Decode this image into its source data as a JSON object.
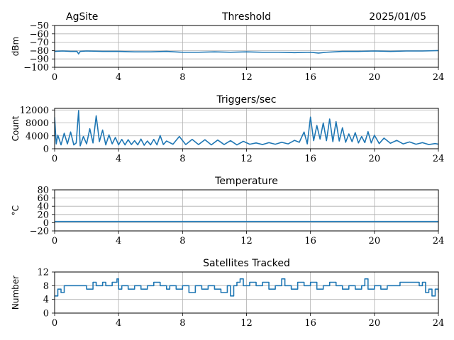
{
  "header": {
    "site": "AgSite",
    "date": "2025/01/05"
  },
  "style": {
    "line_color": "#1f77b4",
    "grid_color": "#b0b0b0"
  },
  "chart_data": [
    {
      "type": "line",
      "title": "Threshold",
      "ylabel": "dBm",
      "xlim": [
        0,
        24
      ],
      "xticks": [
        0,
        4,
        8,
        12,
        16,
        20,
        24
      ],
      "ylim": [
        -100,
        -50
      ],
      "yticks": [
        -100,
        -90,
        -80,
        -70,
        -60,
        -50
      ],
      "ytick_labels": [
        "−100",
        "−90",
        "−80",
        "−70",
        "−60",
        "−50"
      ],
      "grid": true,
      "series": [
        {
          "x": [
            0,
            0.5,
            1.0,
            1.4,
            1.5,
            1.6,
            2.0,
            3,
            4,
            5,
            6,
            7,
            8,
            9,
            10,
            11,
            12,
            13,
            14,
            15,
            16,
            16.5,
            17,
            17.5,
            18,
            19,
            20,
            21,
            22,
            23,
            24
          ],
          "y": [
            -81,
            -80.5,
            -81,
            -81,
            -84,
            -81,
            -80.5,
            -81,
            -81,
            -81.5,
            -81.5,
            -81,
            -82,
            -82,
            -81.5,
            -82,
            -81.5,
            -82,
            -82,
            -82.5,
            -82,
            -83,
            -82,
            -81.5,
            -81,
            -81,
            -80.5,
            -81,
            -80.5,
            -80.5,
            -80
          ]
        }
      ]
    },
    {
      "type": "line",
      "title": "Triggers/sec",
      "ylabel": "Count",
      "xlim": [
        0,
        24
      ],
      "xticks": [
        0,
        4,
        8,
        12,
        16,
        20,
        24
      ],
      "ylim": [
        0,
        12500
      ],
      "yticks": [
        0,
        4000,
        8000,
        12000
      ],
      "ytick_labels": [
        "0",
        "4000",
        "8000",
        "12000"
      ],
      "grid": true,
      "series": [
        {
          "x": [
            0,
            0.1,
            0.2,
            0.4,
            0.6,
            0.8,
            1.0,
            1.2,
            1.35,
            1.5,
            1.6,
            1.8,
            2.0,
            2.2,
            2.4,
            2.6,
            2.8,
            3.0,
            3.2,
            3.4,
            3.6,
            3.8,
            4.0,
            4.2,
            4.4,
            4.6,
            4.8,
            5.0,
            5.2,
            5.4,
            5.6,
            5.8,
            6.0,
            6.2,
            6.4,
            6.6,
            6.8,
            7.0,
            7.4,
            7.8,
            8.2,
            8.6,
            9.0,
            9.4,
            9.8,
            10.2,
            10.6,
            11.0,
            11.4,
            11.8,
            12.2,
            12.6,
            13.0,
            13.4,
            13.8,
            14.2,
            14.6,
            15.0,
            15.3,
            15.6,
            15.8,
            16.0,
            16.2,
            16.4,
            16.6,
            16.8,
            17.0,
            17.2,
            17.4,
            17.6,
            17.8,
            18.0,
            18.2,
            18.4,
            18.6,
            18.8,
            19.0,
            19.2,
            19.4,
            19.6,
            19.8,
            20.0,
            20.3,
            20.6,
            21.0,
            21.4,
            21.8,
            22.2,
            22.6,
            23.0,
            23.4,
            23.8,
            24.0
          ],
          "y": [
            9800,
            1500,
            4200,
            1200,
            4800,
            1500,
            5200,
            1200,
            1800,
            11800,
            900,
            3800,
            1500,
            6200,
            1800,
            10200,
            2200,
            5800,
            1200,
            4300,
            1500,
            3500,
            1200,
            2900,
            1200,
            2800,
            1300,
            2500,
            1200,
            3000,
            1100,
            2400,
            1200,
            2900,
            1200,
            4100,
            1300,
            2400,
            1400,
            3800,
            1300,
            2900,
            1300,
            2800,
            1200,
            2700,
            1300,
            2500,
            1200,
            2300,
            1400,
            1800,
            1300,
            1900,
            1400,
            2000,
            1500,
            2600,
            2000,
            5200,
            1500,
            9800,
            2500,
            7200,
            3000,
            8000,
            2500,
            9200,
            2200,
            8400,
            2400,
            6500,
            2000,
            4600,
            2200,
            5000,
            1800,
            3800,
            1900,
            5300,
            1800,
            4200,
            1600,
            3300,
            1700,
            2600,
            1500,
            2100,
            1400,
            1900,
            1300,
            1600,
            1400
          ]
        }
      ]
    },
    {
      "type": "line",
      "title": "Temperature",
      "ylabel": "°C",
      "xlim": [
        0,
        24
      ],
      "xticks": [
        0,
        4,
        8,
        12,
        16,
        20,
        24
      ],
      "ylim": [
        -20,
        80
      ],
      "yticks": [
        -20,
        0,
        20,
        40,
        60,
        80
      ],
      "ytick_labels": [
        "−20",
        "0",
        "20",
        "40",
        "60",
        "80"
      ],
      "grid": true,
      "series": [
        {
          "x": [
            0,
            24
          ],
          "y": [
            3,
            3
          ]
        }
      ]
    },
    {
      "type": "line",
      "title": "Satellites Tracked",
      "ylabel": "Number",
      "xlim": [
        0,
        24
      ],
      "xticks": [
        0,
        4,
        8,
        12,
        16,
        20,
        24
      ],
      "ylim": [
        0,
        12
      ],
      "yticks": [
        0,
        4,
        8,
        12
      ],
      "ytick_labels": [
        "0",
        "4",
        "8",
        "12"
      ],
      "grid": true,
      "step": true,
      "series": [
        {
          "x": [
            0,
            0.2,
            0.4,
            0.6,
            1.0,
            1.6,
            2.0,
            2.4,
            2.6,
            3.0,
            3.2,
            3.6,
            3.9,
            4.0,
            4.2,
            4.6,
            5.0,
            5.4,
            5.8,
            6.2,
            6.6,
            7.0,
            7.2,
            7.6,
            8.0,
            8.4,
            8.8,
            9.2,
            9.6,
            10.0,
            10.4,
            10.8,
            11.0,
            11.2,
            11.4,
            11.6,
            11.8,
            12.2,
            12.6,
            13.0,
            13.4,
            13.8,
            14.2,
            14.4,
            14.8,
            15.2,
            15.6,
            16.0,
            16.4,
            16.8,
            17.2,
            17.6,
            18.0,
            18.4,
            18.8,
            19.2,
            19.4,
            19.6,
            20.0,
            20.4,
            20.8,
            21.2,
            21.6,
            22.0,
            22.4,
            22.8,
            23.0,
            23.2,
            23.4,
            23.6,
            23.8,
            24.0
          ],
          "y": [
            5,
            7,
            6,
            8,
            8,
            8,
            7,
            9,
            8,
            9,
            8,
            9,
            10,
            7,
            8,
            7,
            8,
            7,
            8,
            9,
            8,
            7,
            8,
            7,
            8,
            6,
            8,
            7,
            8,
            7,
            6,
            8,
            5,
            8,
            9,
            10,
            8,
            9,
            8,
            9,
            7,
            8,
            10,
            8,
            7,
            9,
            8,
            9,
            7,
            8,
            9,
            8,
            7,
            8,
            7,
            8,
            10,
            7,
            8,
            7,
            8,
            8,
            9,
            9,
            9,
            8,
            9,
            6,
            7,
            5,
            7,
            6
          ]
        }
      ]
    }
  ]
}
